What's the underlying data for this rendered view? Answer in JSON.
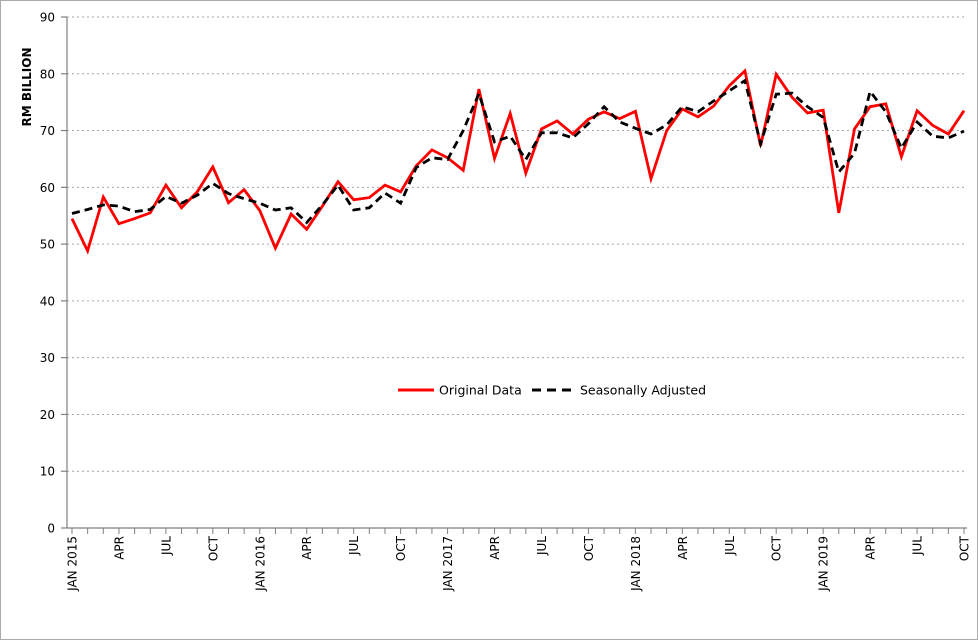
{
  "chart_data": {
    "type": "line",
    "title": "",
    "ylabel": "RM BILLION",
    "ylim": [
      0,
      90
    ],
    "y_tick_step": 10,
    "y_ticks": [
      "0",
      "10",
      "20",
      "30",
      "40",
      "50",
      "60",
      "70",
      "80",
      "90"
    ],
    "grid": "horizontal-dotted",
    "legend_position": "center-middle",
    "categories": [
      "JAN 2015",
      "FEB 2015",
      "MAR 2015",
      "APR 2015",
      "MAY 2015",
      "JUN 2015",
      "JUL 2015",
      "AUG 2015",
      "SEP 2015",
      "OCT 2015",
      "NOV 2015",
      "DEC 2015",
      "JAN 2016",
      "FEB 2016",
      "MAR 2016",
      "APR 2016",
      "MAY 2016",
      "JUN 2016",
      "JUL 2016",
      "AUG 2016",
      "SEP 2016",
      "OCT 2016",
      "NOV 2016",
      "DEC 2016",
      "JAN 2017",
      "FEB 2017",
      "MAR 2017",
      "APR 2017",
      "MAY 2017",
      "JUN 2017",
      "JUL 2017",
      "AUG 2017",
      "SEP 2017",
      "OCT 2017",
      "NOV 2017",
      "DEC 2017",
      "JAN 2018",
      "FEB 2018",
      "MAR 2018",
      "APR 2018",
      "MAY 2018",
      "JUN 2018",
      "JUL 2018",
      "AUG 2018",
      "SEP 2018",
      "OCT 2018",
      "NOV 2018",
      "DEC 2018",
      "JAN 2019",
      "FEB 2019",
      "MAR 2019",
      "APR 2019",
      "MAY 2019",
      "JUN 2019",
      "JUL 2019",
      "AUG 2019",
      "SEP 2019",
      "OCT 2019"
    ],
    "x_tick_labels": [
      {
        "index": 0,
        "label": "JAN 2015"
      },
      {
        "index": 3,
        "label": "APR"
      },
      {
        "index": 6,
        "label": "JUL"
      },
      {
        "index": 9,
        "label": "OCT"
      },
      {
        "index": 12,
        "label": "JAN 2016"
      },
      {
        "index": 15,
        "label": "APR"
      },
      {
        "index": 18,
        "label": "JUL"
      },
      {
        "index": 21,
        "label": "OCT"
      },
      {
        "index": 24,
        "label": "JAN 2017"
      },
      {
        "index": 27,
        "label": "APR"
      },
      {
        "index": 30,
        "label": "JUL"
      },
      {
        "index": 33,
        "label": "OCT"
      },
      {
        "index": 36,
        "label": "JAN 2018"
      },
      {
        "index": 39,
        "label": "APR"
      },
      {
        "index": 42,
        "label": "JUL"
      },
      {
        "index": 45,
        "label": "OCT"
      },
      {
        "index": 48,
        "label": "JAN 2019"
      },
      {
        "index": 51,
        "label": "APR"
      },
      {
        "index": 54,
        "label": "JUL"
      },
      {
        "index": 57,
        "label": "OCT"
      }
    ],
    "series": [
      {
        "name": "Original Data",
        "color": "#FF0000",
        "style": "solid",
        "values": [
          54.5,
          48.8,
          58.3,
          53.6,
          54.5,
          55.5,
          60.4,
          56.4,
          59.2,
          63.6,
          57.3,
          59.6,
          55.9,
          49.3,
          55.3,
          52.6,
          56.7,
          61.0,
          57.8,
          58.2,
          60.4,
          59.2,
          63.8,
          66.6,
          65.2,
          63.0,
          77.3,
          65.1,
          73.0,
          62.5,
          70.3,
          71.7,
          69.4,
          72.0,
          73.3,
          72.1,
          73.4,
          61.5,
          70.0,
          73.8,
          72.4,
          74.3,
          77.9,
          80.5,
          67.3,
          79.9,
          75.9,
          73.1,
          73.6,
          55.5,
          70.3,
          74.2,
          74.7,
          65.4,
          73.5,
          70.9,
          69.4,
          73.5
        ]
      },
      {
        "name": "Seasonally Adjusted",
        "color": "#000000",
        "style": "dashed",
        "values": [
          55.4,
          56.1,
          56.9,
          56.7,
          55.7,
          56.1,
          58.4,
          57.2,
          58.6,
          60.7,
          58.9,
          58.0,
          57.2,
          56.0,
          56.4,
          53.8,
          56.9,
          60.4,
          56.0,
          56.4,
          59.0,
          57.2,
          63.5,
          65.2,
          64.9,
          70.0,
          76.5,
          68.0,
          69.0,
          64.9,
          69.6,
          69.6,
          68.7,
          71.2,
          74.2,
          71.5,
          70.4,
          69.4,
          71.0,
          74.2,
          73.3,
          75.2,
          77.0,
          78.8,
          67.7,
          76.4,
          76.6,
          74.2,
          72.3,
          62.7,
          66.0,
          76.9,
          73.3,
          66.9,
          71.5,
          69.0,
          68.7,
          69.9
        ]
      }
    ]
  },
  "colors": {
    "background": "#FFFFFF",
    "frame_border": "#ABABAB",
    "axis_line": "#808080",
    "gridline": "#A6A6A6",
    "tick_label": "#000000",
    "series_original": "#FF0000",
    "series_seasonal": "#000000"
  }
}
